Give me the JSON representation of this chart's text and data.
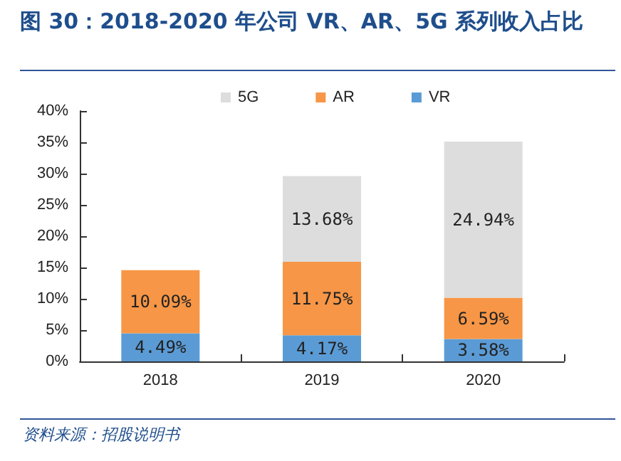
{
  "chart_data": {
    "type": "bar",
    "stacked": true,
    "title": "图 30：2018-2020 年公司 VR、AR、5G 系列收入占比",
    "categories": [
      "2018",
      "2019",
      "2020"
    ],
    "series": [
      {
        "name": "VR",
        "color": "#5b9bd5",
        "values": [
          4.49,
          4.17,
          3.58
        ],
        "value_labels": [
          "4.49%",
          "4.17%",
          "3.58%"
        ]
      },
      {
        "name": "AR",
        "color": "#f79646",
        "values": [
          10.09,
          11.75,
          6.59
        ],
        "value_labels": [
          "10.09%",
          "11.75%",
          "6.59%"
        ]
      },
      {
        "name": "5G",
        "color": "#dddddd",
        "values": [
          null,
          13.68,
          24.94
        ],
        "value_labels": [
          null,
          "13.68%",
          "24.94%"
        ]
      }
    ],
    "ylim": [
      0,
      40
    ],
    "yticks": [
      {
        "value": 0,
        "label": "0%"
      },
      {
        "value": 5,
        "label": "5%"
      },
      {
        "value": 10,
        "label": "10%"
      },
      {
        "value": 15,
        "label": "15%"
      },
      {
        "value": 20,
        "label": "20%"
      },
      {
        "value": 25,
        "label": "25%"
      },
      {
        "value": 30,
        "label": "30%"
      },
      {
        "value": 35,
        "label": "35%"
      },
      {
        "value": 40,
        "label": "40%"
      }
    ],
    "grid": false,
    "legend": "top",
    "annotations": [
      "资料来源：招股说明书"
    ]
  }
}
